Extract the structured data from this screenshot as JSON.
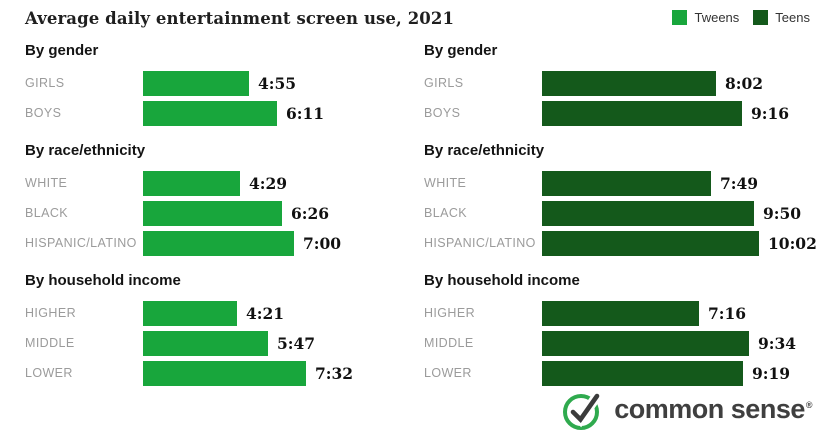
{
  "title": "Average daily entertainment screen use, 2021",
  "legend": [
    {
      "label": "Tweens",
      "color": "#18a63c"
    },
    {
      "label": "Teens",
      "color": "#14591b"
    }
  ],
  "columns": [
    {
      "group": "Tweens",
      "color": "#18a63c",
      "sections": [
        {
          "heading": "By gender",
          "rows": [
            {
              "label": "GIRLS",
              "value": "4:55"
            },
            {
              "label": "BOYS",
              "value": "6:11"
            }
          ]
        },
        {
          "heading": "By race/ethnicity",
          "rows": [
            {
              "label": "WHITE",
              "value": "4:29"
            },
            {
              "label": "BLACK",
              "value": "6:26"
            },
            {
              "label": "HISPANIC/LATINO",
              "value": "7:00"
            }
          ]
        },
        {
          "heading": "By household income",
          "rows": [
            {
              "label": "HIGHER",
              "value": "4:21"
            },
            {
              "label": "MIDDLE",
              "value": "5:47"
            },
            {
              "label": "LOWER",
              "value": "7:32"
            }
          ]
        }
      ]
    },
    {
      "group": "Teens",
      "color": "#14591b",
      "sections": [
        {
          "heading": "By gender",
          "rows": [
            {
              "label": "GIRLS",
              "value": "8:02"
            },
            {
              "label": "BOYS",
              "value": "9:16"
            }
          ]
        },
        {
          "heading": "By race/ethnicity",
          "rows": [
            {
              "label": "WHITE",
              "value": "7:49"
            },
            {
              "label": "BLACK",
              "value": "9:50"
            },
            {
              "label": "HISPANIC/LATINO",
              "value": "10:02"
            }
          ]
        },
        {
          "heading": "By household income",
          "rows": [
            {
              "label": "HIGHER",
              "value": "7:16"
            },
            {
              "label": "MIDDLE",
              "value": "9:34"
            },
            {
              "label": "LOWER",
              "value": "9:19"
            }
          ]
        }
      ]
    }
  ],
  "logo": {
    "text": "common sense",
    "registered": "®",
    "circle_color": "#2faa4e",
    "check_color": "#3b3b3b"
  },
  "chart_data": {
    "type": "bar",
    "orientation": "horizontal",
    "title": "Average daily entertainment screen use, 2021",
    "unit": "hours:minutes per day",
    "grid": false,
    "legend_position": "top-right",
    "section_groups": {
      "By gender": [
        "Girls",
        "Boys"
      ],
      "By race/ethnicity": [
        "White",
        "Black",
        "Hispanic/Latino"
      ],
      "By household income": [
        "Higher",
        "Middle",
        "Lower"
      ]
    },
    "categories": [
      "Girls",
      "Boys",
      "White",
      "Black",
      "Hispanic/Latino",
      "Higher",
      "Middle",
      "Lower"
    ],
    "series": [
      {
        "name": "Tweens",
        "color": "#18a63c",
        "values_hmm": [
          "4:55",
          "6:11",
          "4:29",
          "6:26",
          "7:00",
          "4:21",
          "5:47",
          "7:32"
        ],
        "values_minutes": [
          295,
          371,
          269,
          386,
          420,
          261,
          347,
          452
        ]
      },
      {
        "name": "Teens",
        "color": "#14591b",
        "values_hmm": [
          "8:02",
          "9:16",
          "7:49",
          "9:50",
          "10:02",
          "7:16",
          "9:34",
          "9:19"
        ],
        "values_minutes": [
          482,
          556,
          469,
          590,
          602,
          436,
          574,
          559
        ]
      }
    ]
  }
}
